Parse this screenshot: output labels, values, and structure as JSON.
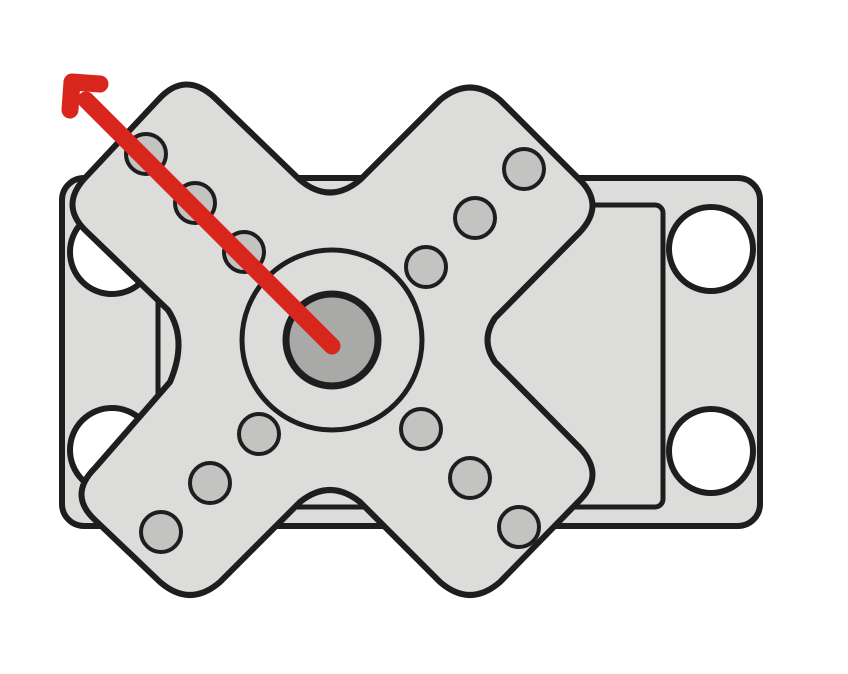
{
  "colors": {
    "background": "#ffffff",
    "outline": "#1e1e1e",
    "body_fill": "#dcdcdb",
    "horn_fill": "#dcdcdb",
    "hole_fill": "#c3c3c1",
    "shaft_fill": "#a9a9a8",
    "mount_hole_fill": "#ffffff",
    "arrow": "#d9261c"
  },
  "icons": {
    "servo_body": "servo-body-icon",
    "horn": "cross-horn-icon",
    "direction": "direction-arrow-icon"
  }
}
